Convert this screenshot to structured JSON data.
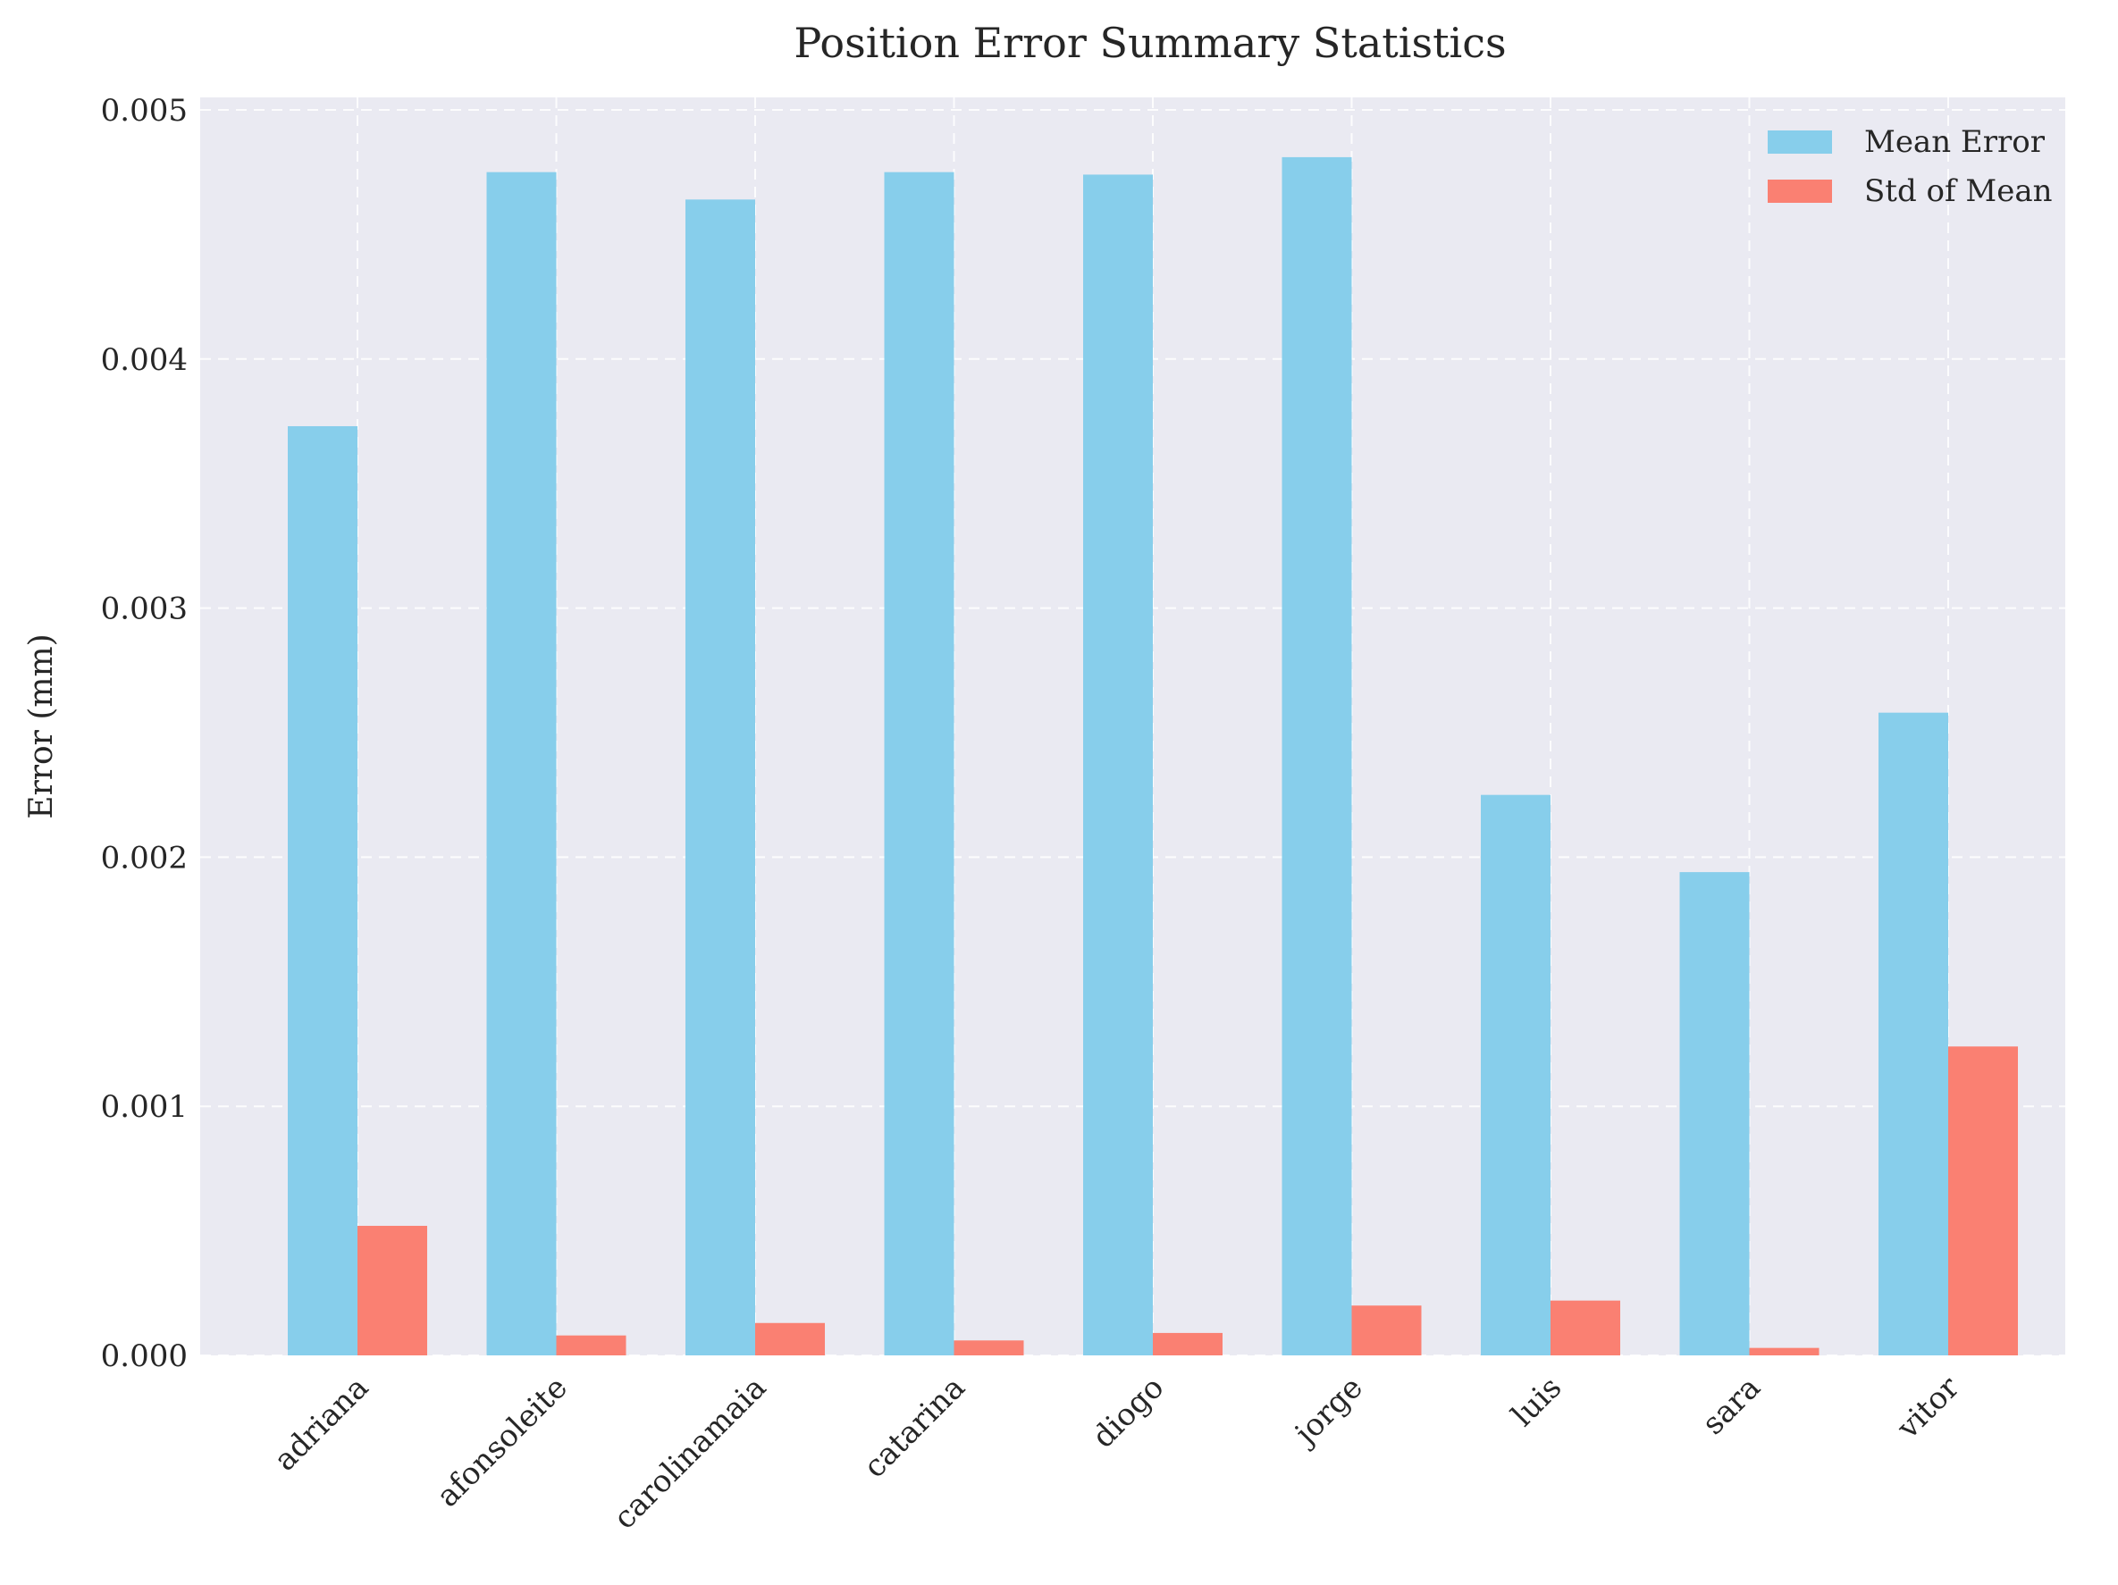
{
  "chart_data": {
    "type": "bar",
    "title": "Position Error Summary Statistics",
    "xlabel": "",
    "ylabel": "Error (mm)",
    "ylim": [
      0,
      0.00505
    ],
    "yticks": [
      "0.000",
      "0.001",
      "0.002",
      "0.003",
      "0.004",
      "0.005"
    ],
    "ytick_values": [
      0,
      0.001,
      0.002,
      0.003,
      0.004,
      0.005
    ],
    "grid": true,
    "legend_position": "top-right",
    "categories": [
      "adriana",
      "afonsoleite",
      "carolinamaia",
      "catarina",
      "diogo",
      "jorge",
      "luis",
      "sara",
      "vitor"
    ],
    "series": [
      {
        "name": "Mean Error",
        "color": "#87CEEB",
        "values": [
          0.00373,
          0.00475,
          0.00464,
          0.00475,
          0.00474,
          0.00481,
          0.00225,
          0.00194,
          0.00258
        ]
      },
      {
        "name": "Std of Mean",
        "color": "#FA8072",
        "values": [
          0.00052,
          8e-05,
          0.00013,
          6e-05,
          9e-05,
          0.0002,
          0.00022,
          3e-05,
          0.00124
        ]
      }
    ]
  },
  "colors": {
    "plot_background": "#EAEAF2",
    "grid": "#FFFFFF",
    "text": "#262626"
  }
}
